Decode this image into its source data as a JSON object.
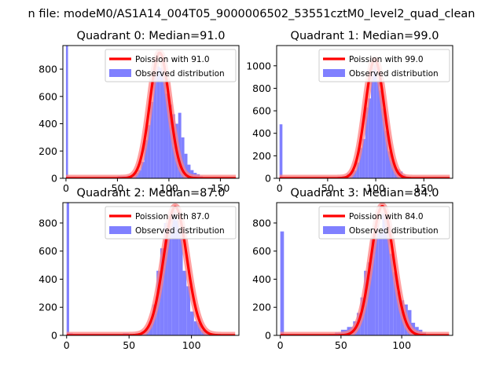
{
  "figure": {
    "suptitle": "n file: modeM0/AS1A14_004T05_9000006502_53551cztM0_level2_quad_clean",
    "colors": {
      "hist": "#8080ff",
      "curve": "#ff0000",
      "curve_band": "#ff8080",
      "axis": "#000000"
    }
  },
  "chart_data": [
    {
      "type": "bar",
      "title": "Quadrant 0: Median=91.0",
      "xlim": [
        -3,
        168
      ],
      "ylim": [
        0,
        973
      ],
      "xticks": [
        0,
        50,
        100,
        150
      ],
      "yticks": [
        0,
        200,
        400,
        600,
        800
      ],
      "legend": [
        "Poission with 91.0",
        "Observed distribution"
      ],
      "median": 91.0,
      "amplitude": 920,
      "sigma": 9.5,
      "hist": {
        "bins": [
          [
            0,
            2,
            973
          ],
          [
            2,
            5,
            10
          ],
          [
            5,
            10,
            10
          ],
          [
            45,
            50,
            5
          ],
          [
            50,
            55,
            15
          ],
          [
            55,
            60,
            15
          ],
          [
            60,
            65,
            20
          ],
          [
            65,
            70,
            40
          ],
          [
            70,
            73,
            60
          ],
          [
            73,
            76,
            120
          ],
          [
            76,
            79,
            280
          ],
          [
            79,
            82,
            390
          ],
          [
            82,
            85,
            560
          ],
          [
            85,
            88,
            770
          ],
          [
            88,
            91,
            820
          ],
          [
            91,
            94,
            810
          ],
          [
            94,
            97,
            750
          ],
          [
            97,
            100,
            620
          ],
          [
            100,
            103,
            540
          ],
          [
            103,
            106,
            470
          ],
          [
            106,
            109,
            400
          ],
          [
            109,
            112,
            480
          ],
          [
            112,
            115,
            300
          ],
          [
            115,
            118,
            180
          ],
          [
            118,
            121,
            100
          ],
          [
            121,
            124,
            60
          ],
          [
            124,
            127,
            40
          ],
          [
            127,
            130,
            30
          ],
          [
            130,
            133,
            15
          ]
        ]
      }
    },
    {
      "type": "bar",
      "title": "Quadrant 1: Median=99.0",
      "xlim": [
        -3,
        180
      ],
      "ylim": [
        0,
        1180
      ],
      "xticks": [
        0,
        50,
        100,
        150
      ],
      "yticks": [
        0,
        200,
        400,
        600,
        800,
        1000
      ],
      "legend": [
        "Poission with 99.0",
        "Observed distribution"
      ],
      "median": 99.0,
      "amplitude": 1055,
      "sigma": 9.8,
      "hist": {
        "bins": [
          [
            0,
            3,
            480
          ],
          [
            55,
            60,
            5
          ],
          [
            60,
            65,
            15
          ],
          [
            65,
            70,
            20
          ],
          [
            70,
            75,
            40
          ],
          [
            75,
            80,
            70
          ],
          [
            80,
            83,
            140
          ],
          [
            83,
            86,
            270
          ],
          [
            86,
            89,
            350
          ],
          [
            89,
            92,
            630
          ],
          [
            92,
            95,
            710
          ],
          [
            95,
            98,
            980
          ],
          [
            98,
            101,
            1010
          ],
          [
            101,
            104,
            870
          ],
          [
            104,
            107,
            780
          ],
          [
            107,
            110,
            620
          ],
          [
            110,
            113,
            420
          ],
          [
            113,
            116,
            240
          ],
          [
            116,
            119,
            160
          ],
          [
            119,
            122,
            100
          ],
          [
            122,
            125,
            80
          ],
          [
            125,
            128,
            60
          ],
          [
            128,
            131,
            30
          ],
          [
            131,
            134,
            15
          ]
        ]
      }
    },
    {
      "type": "bar",
      "title": "Quadrant 2: Median=87.0",
      "xlim": [
        -3,
        138
      ],
      "ylim": [
        0,
        945
      ],
      "xticks": [
        0,
        50,
        100
      ],
      "yticks": [
        0,
        200,
        400,
        600,
        800
      ],
      "legend": [
        "Poission with 87.0",
        "Observed distribution"
      ],
      "median": 87.0,
      "amplitude": 915,
      "sigma": 9.3,
      "hist": {
        "bins": [
          [
            0,
            2,
            945
          ],
          [
            2,
            5,
            15
          ],
          [
            5,
            45,
            10
          ],
          [
            45,
            50,
            15
          ],
          [
            50,
            55,
            10
          ],
          [
            55,
            60,
            15
          ],
          [
            60,
            63,
            30
          ],
          [
            63,
            66,
            50
          ],
          [
            66,
            69,
            100
          ],
          [
            69,
            72,
            220
          ],
          [
            72,
            75,
            460
          ],
          [
            75,
            78,
            620
          ],
          [
            78,
            81,
            800
          ],
          [
            81,
            84,
            780
          ],
          [
            84,
            87,
            890
          ],
          [
            87,
            90,
            820
          ],
          [
            90,
            93,
            740
          ],
          [
            93,
            96,
            460
          ],
          [
            96,
            99,
            350
          ],
          [
            99,
            102,
            170
          ],
          [
            102,
            105,
            100
          ],
          [
            105,
            108,
            90
          ],
          [
            108,
            111,
            40
          ],
          [
            111,
            114,
            20
          ]
        ]
      }
    },
    {
      "type": "bar",
      "title": "Quadrant 3: Median=84.0",
      "xlim": [
        -3,
        142
      ],
      "ylim": [
        0,
        945
      ],
      "xticks": [
        0,
        50,
        100
      ],
      "yticks": [
        0,
        200,
        400,
        600,
        800
      ],
      "legend": [
        "Poission with 84.0",
        "Observed distribution"
      ],
      "median": 84.0,
      "amplitude": 920,
      "sigma": 9.2,
      "hist": {
        "bins": [
          [
            0,
            3,
            740
          ],
          [
            40,
            45,
            10
          ],
          [
            45,
            50,
            20
          ],
          [
            50,
            55,
            40
          ],
          [
            55,
            60,
            60
          ],
          [
            60,
            63,
            100
          ],
          [
            63,
            66,
            160
          ],
          [
            66,
            69,
            270
          ],
          [
            69,
            72,
            460
          ],
          [
            72,
            75,
            520
          ],
          [
            75,
            78,
            700
          ],
          [
            78,
            81,
            790
          ],
          [
            81,
            84,
            730
          ],
          [
            84,
            87,
            870
          ],
          [
            87,
            90,
            840
          ],
          [
            90,
            93,
            580
          ],
          [
            93,
            96,
            450
          ],
          [
            96,
            99,
            310
          ],
          [
            99,
            102,
            250
          ],
          [
            102,
            105,
            220
          ],
          [
            105,
            108,
            180
          ],
          [
            108,
            111,
            90
          ],
          [
            111,
            114,
            60
          ],
          [
            114,
            117,
            40
          ],
          [
            117,
            120,
            20
          ]
        ]
      }
    }
  ]
}
